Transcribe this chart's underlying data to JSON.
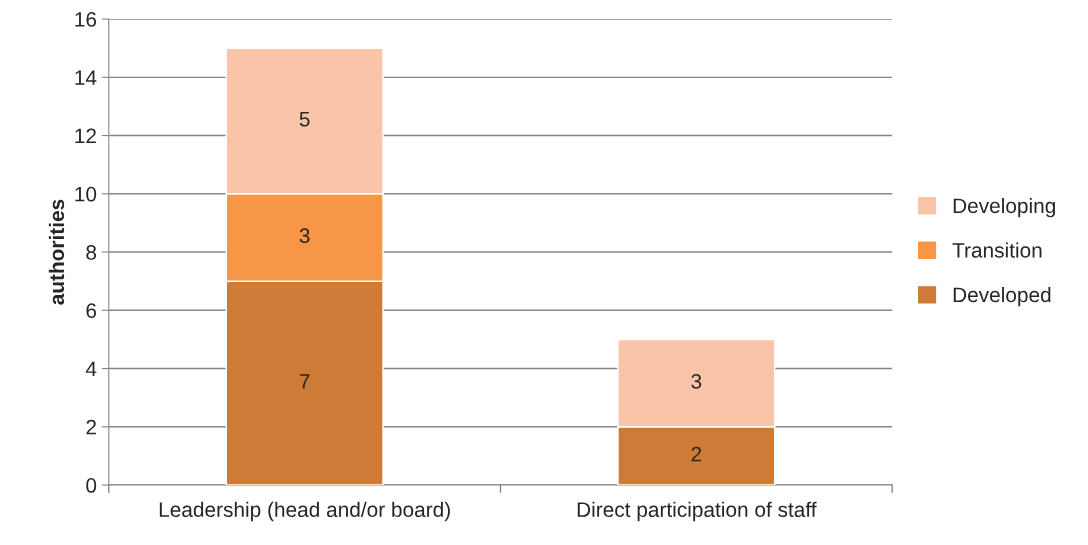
{
  "chart_data": {
    "type": "bar",
    "stacked": true,
    "ylabel": "authorities",
    "categories": [
      "Leadership (head and/or board)",
      "Direct participation of staff"
    ],
    "series": [
      {
        "name": "Developed",
        "color": "#cd7b37",
        "values": [
          7,
          2
        ]
      },
      {
        "name": "Transition",
        "color": "#f79646",
        "values": [
          3,
          null
        ]
      },
      {
        "name": "Developing",
        "color": "#fac4a8",
        "values": [
          5,
          3
        ]
      }
    ],
    "ylim": [
      0,
      16
    ],
    "yticks": [
      0,
      2,
      4,
      6,
      8,
      10,
      12,
      14,
      16
    ],
    "grid": "y",
    "legend": "right",
    "data_labels": true
  }
}
